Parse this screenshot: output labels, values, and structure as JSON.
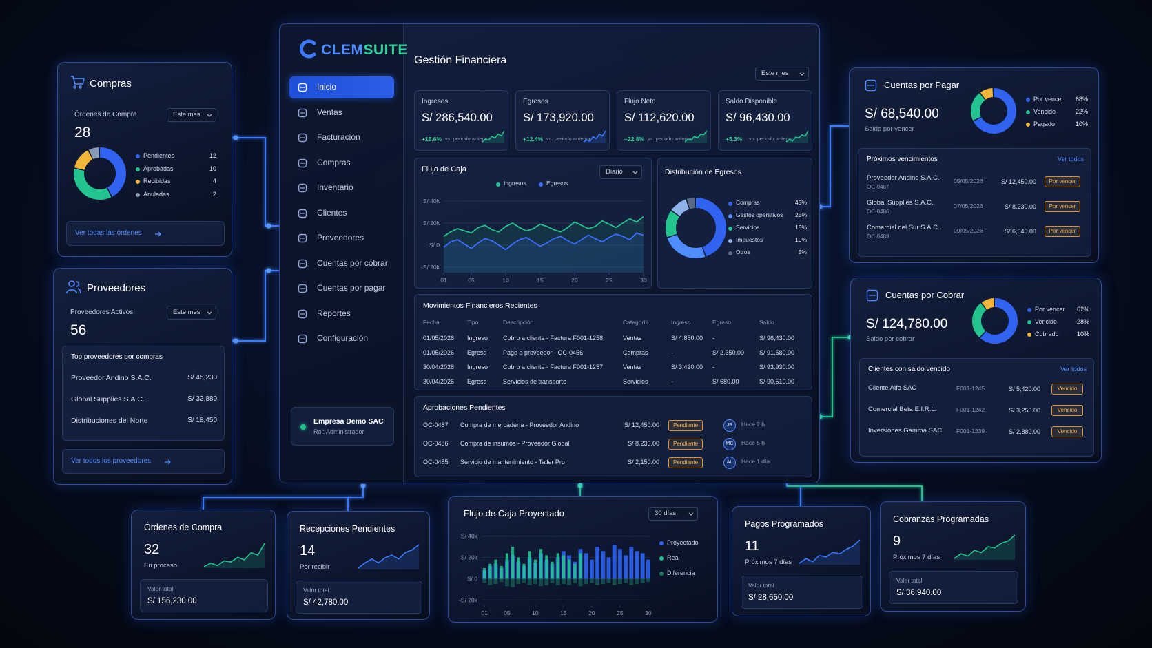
{
  "brand": {
    "a": "CLEM",
    "b": "SUITE"
  },
  "nav": {
    "items": [
      "Inicio",
      "Ventas",
      "Facturación",
      "Compras",
      "Inventario",
      "Clientes",
      "Proveedores",
      "Cuentas por cobrar",
      "Cuentas por pagar",
      "Reportes",
      "Configuración"
    ],
    "active": 0
  },
  "company": {
    "name": "Empresa Demo SAC",
    "role": "Rol: Administrador"
  },
  "main": {
    "title": "Gestión Financiera",
    "period": "Este mes"
  },
  "kpis": [
    {
      "label": "Ingresos",
      "value": "S/ 286,540.00",
      "change": "+18.6%",
      "note": "vs. periodo anterior",
      "color": "#22c38e",
      "spark": [
        3,
        4,
        3.6,
        5,
        4.4,
        5.8,
        5.2,
        7
      ]
    },
    {
      "label": "Egresos",
      "value": "S/ 173,920.00",
      "change": "+12.4%",
      "note": "vs. periodo anterior",
      "color": "#3a7bff",
      "spark": [
        3,
        3.6,
        3.2,
        4.6,
        4,
        5.4,
        4.8,
        6.4
      ]
    },
    {
      "label": "Flujo Neto",
      "value": "S/ 112,620.00",
      "change": "+22.8%",
      "note": "vs. periodo anterior",
      "color": "#22c38e",
      "spark": [
        2.8,
        3.8,
        3.4,
        4.8,
        4.2,
        5.6,
        5.4,
        6.8
      ]
    },
    {
      "label": "Saldo Disponible",
      "value": "S/ 96,430.00",
      "change": "+5.3%",
      "note": "vs. periodo anterior",
      "color": "#22c38e",
      "spark": [
        3.2,
        3.8,
        3.4,
        4.4,
        4.2,
        5,
        4.6,
        6
      ]
    }
  ],
  "cashflow": {
    "type": "line",
    "title": "Flujo de Caja",
    "period": "Diario",
    "x": [
      1,
      2,
      3,
      4,
      5,
      6,
      7,
      8,
      9,
      10,
      11,
      12,
      13,
      14,
      15,
      16,
      17,
      18,
      19,
      20,
      21,
      22,
      23,
      24,
      25,
      26,
      27,
      28,
      29,
      30
    ],
    "xlim": [
      1,
      30
    ],
    "xticks": [
      {
        "value": 1,
        "label": "01"
      },
      {
        "value": 5,
        "label": "05"
      },
      10,
      15,
      20,
      25,
      30
    ],
    "ylim": [
      -25000,
      45000
    ],
    "yticks": [
      {
        "value": 40000,
        "label": "S/ 40k"
      },
      {
        "value": 20000,
        "label": "S/ 20k"
      },
      {
        "value": 0,
        "label": "S/ 0"
      },
      {
        "value": -20000,
        "label": "-S/ 20k"
      }
    ],
    "series": [
      {
        "name": "Ingresos",
        "color": "#22c38e",
        "values": [
          8000,
          12000,
          15000,
          13000,
          11000,
          16000,
          18000,
          14000,
          12000,
          17000,
          20000,
          16000,
          13000,
          15000,
          19000,
          17000,
          14000,
          12000,
          16000,
          21000,
          18000,
          15000,
          17000,
          22000,
          19000,
          16000,
          20000,
          24000,
          21000,
          26000
        ]
      },
      {
        "name": "Egresos",
        "color": "#3a6dff",
        "values": [
          -2000,
          3000,
          5000,
          1000,
          -3000,
          2000,
          6000,
          4000,
          0,
          -4000,
          1000,
          5000,
          7000,
          3000,
          -1000,
          2000,
          6000,
          8000,
          4000,
          1000,
          5000,
          9000,
          6000,
          3000,
          7000,
          10000,
          8000,
          5000,
          11000,
          9000
        ]
      }
    ]
  },
  "expenses": {
    "type": "pie",
    "title": "Distribución de Egresos",
    "categories": [
      "Compras",
      "Gastos operativos",
      "Servicios",
      "Impuestos",
      "Otros"
    ],
    "values": [
      45,
      25,
      15,
      10,
      5
    ],
    "value_labels": [
      "45%",
      "25%",
      "15%",
      "10%",
      "5%"
    ],
    "colors": [
      "#2f63f0",
      "#4f8cff",
      "#22c38e",
      "#8fb3e8",
      "#5c6b85"
    ]
  },
  "movements": {
    "title": "Movimientos Financieros Recientes",
    "columns": [
      "Fecha",
      "Tipo",
      "Descripción",
      "Categoría",
      "Ingreso",
      "Egreso",
      "Saldo"
    ],
    "rows": [
      [
        "01/05/2026",
        "Ingreso",
        "Cobro a cliente - Factura F001-1258",
        "Ventas",
        "S/ 4,850.00",
        "-",
        "S/ 96,430.00"
      ],
      [
        "01/05/2026",
        "Egreso",
        "Pago a proveedor - OC-0456",
        "Compras",
        "-",
        "S/ 2,350.00",
        "S/ 91,580.00"
      ],
      [
        "30/04/2026",
        "Ingreso",
        "Cobro a cliente - Factura F001-1257",
        "Ventas",
        "S/ 3,420.00",
        "-",
        "S/ 93,930.00"
      ],
      [
        "30/04/2026",
        "Egreso",
        "Servicios de transporte",
        "Servicios",
        "-",
        "S/ 680.00",
        "S/ 90,510.00"
      ]
    ]
  },
  "approvals": {
    "title": "Aprobaciones Pendientes",
    "rows": [
      {
        "code": "OC-0487",
        "desc": "Compra de mercadería - Proveedor Andino",
        "amount": "S/ 12,450.00",
        "status": "Pendiente",
        "user": "JR",
        "time": "Hace 2 h"
      },
      {
        "code": "OC-0486",
        "desc": "Compra de insumos - Proveedor Global",
        "amount": "S/ 8,230.00",
        "status": "Pendiente",
        "user": "MC",
        "time": "Hace 5 h"
      },
      {
        "code": "OC-0485",
        "desc": "Servicio de mantenimiento - Taller Pro",
        "amount": "S/ 2,150.00",
        "status": "Pendiente",
        "user": "AL",
        "time": "Hace 1 día"
      }
    ]
  },
  "purchases": {
    "type": "pie",
    "title": "Compras",
    "label": "Órdenes de Compra",
    "period": "Este mes",
    "count": "28",
    "categories": [
      "Pendientes",
      "Aprobadas",
      "Recibidas",
      "Anuladas"
    ],
    "values": [
      12,
      10,
      4,
      2
    ],
    "colors": [
      "#2f63f0",
      "#22c38e",
      "#f2b53a",
      "#8a9bb5"
    ],
    "link": "Ver todas las órdenes"
  },
  "suppliers": {
    "title": "Proveedores",
    "label": "Proveedores Activos",
    "period": "Este mes",
    "count": "56",
    "list_title": "Top proveedores por compras",
    "rows": [
      {
        "name": "Proveedor Andino S.A.C.",
        "amount": "S/ 45,230"
      },
      {
        "name": "Global Supplies S.A.C.",
        "amount": "S/ 32,880"
      },
      {
        "name": "Distribuciones del Norte",
        "amount": "S/ 18,450"
      }
    ],
    "link": "Ver todos los proveedores"
  },
  "payables": {
    "type": "pie",
    "title": "Cuentas por Pagar",
    "amount": "S/ 68,540.00",
    "caption": "Saldo por vencer",
    "categories": [
      "Por vencer",
      "Vencido",
      "Pagado"
    ],
    "values": [
      68,
      22,
      10
    ],
    "value_labels": [
      "68%",
      "22%",
      "10%"
    ],
    "colors": [
      "#2f63f0",
      "#22c38e",
      "#f2b53a"
    ],
    "list_title": "Próximos vencimientos",
    "list_link": "Ver todos",
    "rows": [
      {
        "name": "Proveedor Andino S.A.C.",
        "code": "OC-0487",
        "date": "05/05/2026",
        "amount": "S/ 12,450.00",
        "status": "Por vencer"
      },
      {
        "name": "Global Supplies S.A.C.",
        "code": "OC-0486",
        "date": "07/05/2026",
        "amount": "S/ 8,230.00",
        "status": "Por vencer"
      },
      {
        "name": "Comercial del Sur S.A.C.",
        "code": "OC-0483",
        "date": "09/05/2026",
        "amount": "S/ 6,540.00",
        "status": "Por vencer"
      }
    ]
  },
  "receivables": {
    "type": "pie",
    "title": "Cuentas por Cobrar",
    "amount": "S/ 124,780.00",
    "caption": "Saldo por cobrar",
    "categories": [
      "Por vencer",
      "Vencido",
      "Cobrado"
    ],
    "values": [
      62,
      28,
      10
    ],
    "value_labels": [
      "62%",
      "28%",
      "10%"
    ],
    "colors": [
      "#2f63f0",
      "#22c38e",
      "#f2b53a"
    ],
    "list_title": "Clientes con saldo vencido",
    "list_link": "Ver todos",
    "rows": [
      {
        "name": "Cliente Alfa SAC",
        "doc": "F001-1245",
        "amount": "S/ 5,420.00",
        "status": "Vencido"
      },
      {
        "name": "Comercial Beta E.I.R.L.",
        "doc": "F001-1242",
        "amount": "S/ 3,250.00",
        "status": "Vencido"
      },
      {
        "name": "Inversiones Gamma SAC",
        "doc": "F001-1239",
        "amount": "S/ 2,880.00",
        "status": "Vencido"
      }
    ]
  },
  "tiles": [
    {
      "title": "Órdenes de Compra",
      "count": "32",
      "caption": "En proceso",
      "total_label": "Valor total",
      "total": "S/ 156,230.00",
      "color": "#22c38e",
      "spark": [
        2,
        2.6,
        2.2,
        3,
        2.8,
        3.6,
        3.2,
        4.4,
        4,
        6
      ]
    },
    {
      "title": "Recepciones Pendientes",
      "count": "14",
      "caption": "Por recibir",
      "total_label": "Valor total",
      "total": "S/ 42,780.00",
      "color": "#3a7bff",
      "spark": [
        2,
        2.8,
        3.4,
        2.8,
        3.6,
        4,
        3.4,
        4.4,
        4.8,
        5.6
      ]
    },
    {
      "title": "Pagos Programados",
      "count": "11",
      "caption": "Próximos 7 días",
      "total_label": "Valor total",
      "total": "S/ 28,650.00",
      "color": "#3a7bff",
      "spark": [
        2.4,
        3,
        2.6,
        3.4,
        3.2,
        3.8,
        3.6,
        4.2,
        4.6,
        5.4
      ]
    },
    {
      "title": "Cobranzas Programadas",
      "count": "9",
      "caption": "Próximos 7 días",
      "total_label": "Valor total",
      "total": "S/ 36,940.00",
      "color": "#22c38e",
      "spark": [
        2,
        2.8,
        2.4,
        3.4,
        3,
        4,
        3.8,
        4.6,
        5,
        6
      ]
    }
  ],
  "projection": {
    "type": "bar",
    "title": "Flujo de Caja Proyectado",
    "period": "30 días",
    "x": [
      1,
      2,
      3,
      4,
      5,
      6,
      7,
      8,
      9,
      10,
      11,
      12,
      13,
      14,
      15,
      16,
      17,
      18,
      19,
      20,
      21,
      22,
      23,
      24,
      25,
      26,
      27,
      28,
      29,
      30
    ],
    "xlim": [
      0.5,
      30.5
    ],
    "xticks": [
      {
        "value": 1,
        "label": "01"
      },
      {
        "value": 5,
        "label": "05"
      },
      10,
      15,
      20,
      25,
      30
    ],
    "ylim": [
      -25000,
      45000
    ],
    "yticks": [
      {
        "value": 40000,
        "label": "S/ 40k"
      },
      {
        "value": 20000,
        "label": "S/ 20k"
      },
      {
        "value": 0,
        "label": "S/ 0"
      },
      {
        "value": -20000,
        "label": "-S/ 20k"
      }
    ],
    "series": [
      {
        "name": "Proyectado",
        "color": "#2f63f0",
        "values": [
          8000,
          12000,
          14000,
          10000,
          18000,
          22000,
          16000,
          12000,
          20000,
          15000,
          24000,
          18000,
          14000,
          20000,
          26000,
          22000,
          16000,
          28000,
          24000,
          18000,
          30000,
          26000,
          20000,
          32000,
          28000,
          22000,
          30000,
          26000,
          24000,
          18000
        ]
      },
      {
        "name": "Real",
        "color": "#22c38e",
        "values": [
          10000,
          14000,
          18000,
          12000,
          24000,
          30000,
          20000,
          14000,
          26000,
          18000,
          28000,
          22000,
          16000,
          24000,
          22000,
          18000,
          14000,
          24000,
          null,
          null,
          null,
          null,
          null,
          null,
          null,
          null,
          null,
          null,
          null,
          null
        ]
      },
      {
        "name": "Diferencia",
        "color": "#1f7a63",
        "values": [
          -4000,
          -6000,
          -5000,
          -3000,
          -7000,
          -8000,
          -5000,
          -4000,
          -6000,
          -5000,
          -7000,
          -6000,
          -4000,
          -6000,
          -5000,
          -6000,
          -4000,
          -7000,
          -5000,
          -4000,
          -6000,
          -5000,
          -4000,
          -6000,
          -5000,
          -4000,
          -6000,
          -5000,
          -4000,
          -3000
        ]
      }
    ]
  }
}
